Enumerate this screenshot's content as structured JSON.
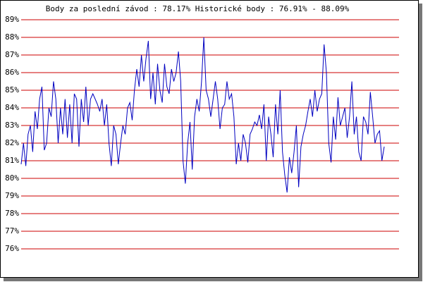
{
  "chart_data": {
    "type": "line",
    "title": "Body za poslední závod : 78.17%  Historické body : 76.91% - 88.09%",
    "series": [
      {
        "color": "#0000c0",
        "values": [
          80.8,
          82,
          80.7,
          82.5,
          83,
          81.5,
          83.8,
          82.8,
          84.5,
          85.2,
          81.6,
          82,
          84,
          83.5,
          85.5,
          84.5,
          82,
          84,
          82.5,
          84.5,
          82.3,
          84.2,
          82,
          84.8,
          84.5,
          81.8,
          84.5,
          83.2,
          85.2,
          83,
          84.5,
          84.8,
          84.5,
          84.2,
          83.8,
          84.5,
          83,
          84.2,
          82,
          80.7,
          83,
          82.5,
          80.8,
          82,
          83,
          82.5,
          84,
          84.3,
          83.3,
          85,
          86.2,
          85.2,
          87,
          85.5,
          86.8,
          87.8,
          84.5,
          86,
          84.2,
          86.5,
          85,
          84.3,
          86.5,
          85.2,
          84.8,
          86.2,
          85.5,
          86,
          87.2,
          85.5,
          81,
          79.7,
          82,
          83.2,
          80.5,
          83.5,
          84.5,
          83.8,
          85.5,
          88,
          85,
          84.5,
          83.5,
          84.5,
          85.5,
          84.5,
          82.8,
          84,
          84.2,
          85.5,
          84.5,
          84.8,
          83.5,
          80.8,
          82,
          81,
          82.5,
          82,
          80.9,
          82.5,
          82.8,
          83.2,
          83,
          83.6,
          82.8,
          84.2,
          81,
          83.5,
          82.5,
          81.2,
          84.2,
          82.5,
          85,
          81.5,
          80.2,
          79.2,
          81.2,
          80.3,
          81.5,
          83,
          79.5,
          81.8,
          82.5,
          83,
          83.8,
          84.5,
          83.5,
          85,
          83.8,
          84.5,
          84.8,
          87.6,
          86,
          82,
          80.9,
          83.5,
          82.2,
          84.6,
          83,
          83.5,
          84,
          82.3,
          83.5,
          85.5,
          82.5,
          83.5,
          81.5,
          81,
          83.5,
          83.2,
          82.5,
          84.9,
          83.5,
          82,
          82.5,
          82.7,
          81,
          81.8
        ]
      }
    ],
    "ylim": [
      76,
      89
    ],
    "yticks": [
      {
        "value": 89,
        "label": "89%"
      },
      {
        "value": 88,
        "label": "88%"
      },
      {
        "value": 87,
        "label": "87%"
      },
      {
        "value": 86,
        "label": "86%"
      },
      {
        "value": 85,
        "label": "85%"
      },
      {
        "value": 84,
        "label": "84%"
      },
      {
        "value": 83,
        "label": "83%"
      },
      {
        "value": 82,
        "label": "82%"
      },
      {
        "value": 81,
        "label": "81%"
      },
      {
        "value": 80,
        "label": "80%"
      },
      {
        "value": 79,
        "label": "79%"
      },
      {
        "value": 78,
        "label": "78%"
      },
      {
        "value": 77,
        "label": "77%"
      },
      {
        "value": 76,
        "label": "76%"
      }
    ],
    "grid": true,
    "grid_color": "#cc0000"
  }
}
